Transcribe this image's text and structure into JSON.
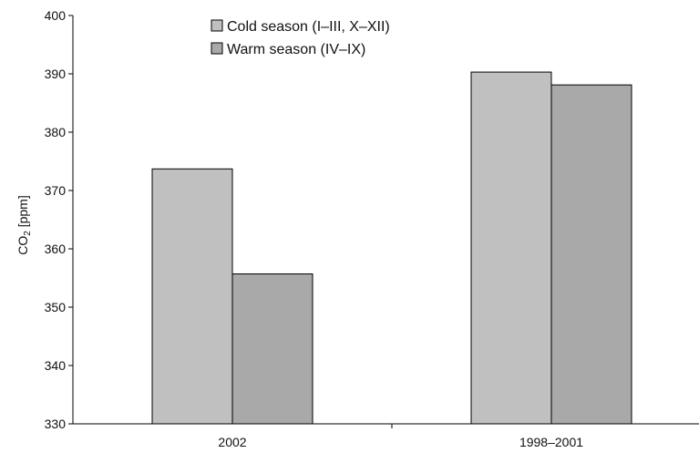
{
  "chart_data": {
    "type": "bar",
    "categories": [
      "2002",
      "1998–2001"
    ],
    "series": [
      {
        "name": "Cold season (I–III, X–XII)",
        "values": [
          373.7,
          390.3
        ],
        "color": "#c0c0c0"
      },
      {
        "name": "Warm season (IV–IX)",
        "values": [
          355.7,
          388.1
        ],
        "color": "#a9a9a9"
      }
    ],
    "ylabel": {
      "main": "CO",
      "sub": "2",
      "unit": " [ppm]"
    },
    "ylim": [
      330,
      400
    ],
    "yticks": [
      "330",
      "340",
      "350",
      "360",
      "370",
      "380",
      "390",
      "400"
    ],
    "grid": false,
    "legend": "top-center"
  }
}
